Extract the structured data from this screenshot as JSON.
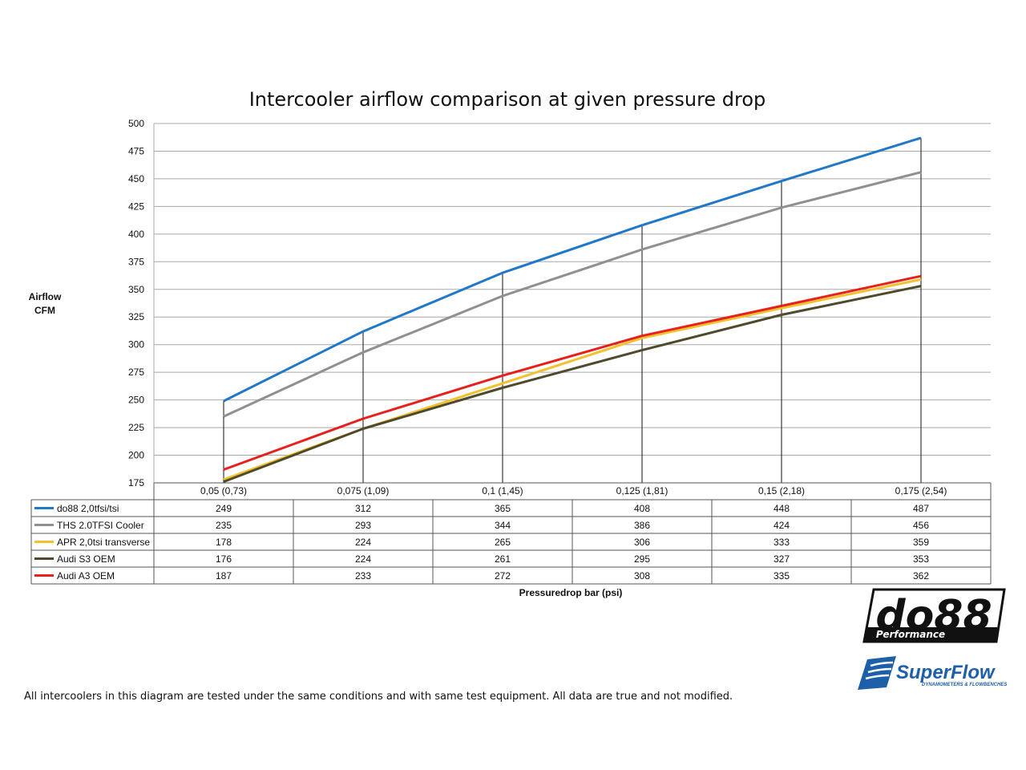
{
  "chart_data": {
    "type": "line",
    "title": "Intercooler airflow comparison at given pressure drop",
    "ylabel_lines": [
      "Airflow",
      "CFM"
    ],
    "xlabel": "Pressuredrop bar (psi)",
    "categories": [
      "0,05 (0,73)",
      "0,075 (1,09)",
      "0,1 (1,45)",
      "0,125 (1,81)",
      "0,15 (2,18)",
      "0,175 (2,54)"
    ],
    "ylim": [
      175,
      500
    ],
    "yticks": [
      175,
      200,
      225,
      250,
      275,
      300,
      325,
      350,
      375,
      400,
      425,
      450,
      475,
      500
    ],
    "grid": true,
    "legend": "data-table-below",
    "series": [
      {
        "name": "do88 2,0tfsi/tsi",
        "color": "#1f78c8",
        "values": [
          249,
          312,
          365,
          408,
          448,
          487
        ]
      },
      {
        "name": "THS 2.0TFSI Cooler",
        "color": "#909090",
        "values": [
          235,
          293,
          344,
          386,
          424,
          456
        ]
      },
      {
        "name": "APR 2,0tsi transverse",
        "color": "#f2c12e",
        "values": [
          178,
          224,
          265,
          306,
          333,
          359
        ]
      },
      {
        "name": "Audi S3 OEM",
        "color": "#4f4a2c",
        "values": [
          176,
          224,
          261,
          295,
          327,
          353
        ]
      },
      {
        "name": "Audi A3 OEM",
        "color": "#e8201c",
        "values": [
          187,
          233,
          272,
          308,
          335,
          362
        ]
      }
    ]
  },
  "footnote": "All intercoolers in this diagram are tested under the same conditions and with same test equipment. All data are true and not modified.",
  "logos": {
    "do88_main": "do88",
    "do88_sub": "Performance",
    "superflow_main": "SuperFlow",
    "superflow_sub": "DYNAMOMETERS & FLOWBENCHES"
  }
}
